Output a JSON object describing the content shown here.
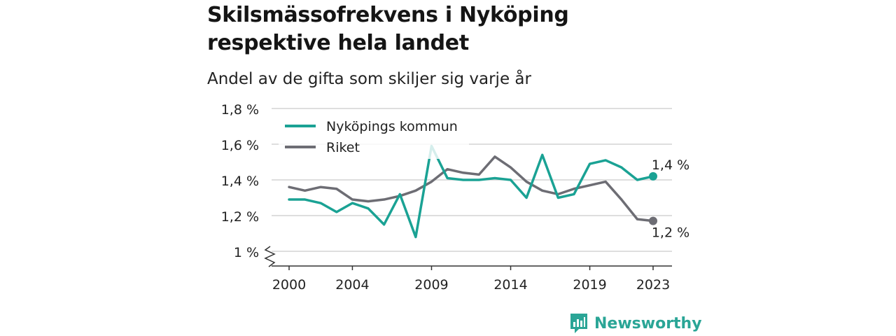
{
  "title": "Skilsmässofrekvens i Nyköping respektive hela landet",
  "subtitle": "Andel av de gifta som skiljer sig varje år",
  "brand": {
    "name": "Newsworthy",
    "color": "#2aa596"
  },
  "colors": {
    "nykoping": "#1aa294",
    "riket": "#6d6d74",
    "grid": "#d4d4d4",
    "axis": "#333333"
  },
  "chart_data": {
    "type": "line",
    "title": "Skilsmässofrekvens i Nyköping respektive hela landet",
    "subtitle": "Andel av de gifta som skiljer sig varje år",
    "x": [
      2000,
      2001,
      2002,
      2003,
      2004,
      2005,
      2006,
      2007,
      2008,
      2009,
      2010,
      2011,
      2012,
      2013,
      2014,
      2015,
      2016,
      2017,
      2018,
      2019,
      2020,
      2021,
      2022,
      2023
    ],
    "x_ticks": [
      2000,
      2004,
      2009,
      2014,
      2019,
      2023
    ],
    "y_ticks": [
      1.0,
      1.2,
      1.4,
      1.6,
      1.8
    ],
    "y_tick_labels": [
      "1 %",
      "1,2 %",
      "1,4 %",
      "1,6 %",
      "1,8 %"
    ],
    "ylim": [
      1.0,
      1.8
    ],
    "y_axis_break": true,
    "grid": true,
    "legend_position": "top-left",
    "series": [
      {
        "name": "Nyköpings kommun",
        "color": "#1aa294",
        "values": [
          1.29,
          1.29,
          1.27,
          1.22,
          1.27,
          1.24,
          1.15,
          1.32,
          1.08,
          1.59,
          1.41,
          1.4,
          1.4,
          1.41,
          1.4,
          1.3,
          1.54,
          1.3,
          1.32,
          1.49,
          1.51,
          1.47,
          1.4,
          1.42
        ],
        "end_label": "1,4 %"
      },
      {
        "name": "Riket",
        "color": "#6d6d74",
        "values": [
          1.36,
          1.34,
          1.36,
          1.35,
          1.29,
          1.28,
          1.29,
          1.31,
          1.34,
          1.39,
          1.46,
          1.44,
          1.43,
          1.53,
          1.47,
          1.39,
          1.34,
          1.32,
          1.35,
          1.37,
          1.39,
          1.29,
          1.18,
          1.17
        ],
        "end_label": "1,2 %"
      }
    ]
  }
}
